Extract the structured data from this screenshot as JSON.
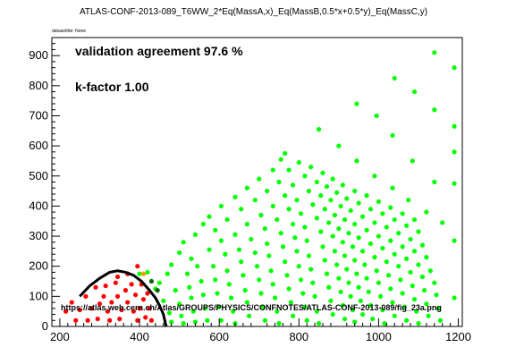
{
  "header": {
    "title": "ATLAS-CONF-2013-089_T6WW_2*Eq(MassA,x)_Eq(MassB,0.5*x+0.5*y)_Eq(MassC,y)",
    "dataset_info": "datasetIde: None"
  },
  "annotations": {
    "validation": "validation agreement 97.6 %",
    "kfactor": "k-factor 1.00",
    "url": "https://atlas.web.cern.ch/Atlas/GROUPS/PHYSICS/CONFNOTES/ATLAS-CONF-2013-089/fig_23a.png"
  },
  "colors": {
    "green": "#00ff00",
    "red": "#ff0000",
    "orange": "#ff9900",
    "darkgreen": "#006600",
    "contour": "#000000"
  },
  "chart_data": {
    "type": "scatter",
    "xlim": [
      180,
      1210
    ],
    "ylim": [
      0,
      960
    ],
    "xticks": [
      200,
      400,
      600,
      800,
      1000,
      1200
    ],
    "yticks": [
      0,
      100,
      200,
      300,
      400,
      500,
      600,
      700,
      800,
      900
    ],
    "grid": false,
    "legend": "none",
    "series": [
      {
        "color": "green",
        "points": [
          [
            400,
            175
          ],
          [
            420,
            180
          ],
          [
            440,
            125
          ],
          [
            460,
            85
          ],
          [
            475,
            45
          ],
          [
            480,
            15
          ],
          [
            450,
            145
          ],
          [
            470,
            175
          ],
          [
            490,
            120
          ],
          [
            500,
            75
          ],
          [
            505,
            35
          ],
          [
            510,
            10
          ],
          [
            480,
            205
          ],
          [
            500,
            245
          ],
          [
            520,
            175
          ],
          [
            525,
            130
          ],
          [
            530,
            95
          ],
          [
            535,
            50
          ],
          [
            540,
            15
          ],
          [
            510,
            280
          ],
          [
            530,
            225
          ],
          [
            545,
            200
          ],
          [
            555,
            150
          ],
          [
            560,
            105
          ],
          [
            565,
            60
          ],
          [
            570,
            20
          ],
          [
            540,
            305
          ],
          [
            560,
            340
          ],
          [
            575,
            255
          ],
          [
            585,
            200
          ],
          [
            590,
            155
          ],
          [
            595,
            110
          ],
          [
            600,
            65
          ],
          [
            605,
            20
          ],
          [
            575,
            365
          ],
          [
            590,
            320
          ],
          [
            605,
            285
          ],
          [
            615,
            240
          ],
          [
            620,
            185
          ],
          [
            625,
            140
          ],
          [
            630,
            95
          ],
          [
            635,
            50
          ],
          [
            640,
            10
          ],
          [
            605,
            400
          ],
          [
            620,
            355
          ],
          [
            640,
            305
          ],
          [
            650,
            255
          ],
          [
            655,
            215
          ],
          [
            660,
            170
          ],
          [
            665,
            120
          ],
          [
            670,
            80
          ],
          [
            675,
            35
          ],
          [
            640,
            430
          ],
          [
            655,
            390
          ],
          [
            670,
            340
          ],
          [
            680,
            290
          ],
          [
            690,
            245
          ],
          [
            695,
            200
          ],
          [
            700,
            155
          ],
          [
            705,
            110
          ],
          [
            710,
            65
          ],
          [
            715,
            20
          ],
          [
            670,
            460
          ],
          [
            690,
            420
          ],
          [
            705,
            370
          ],
          [
            715,
            325
          ],
          [
            720,
            275
          ],
          [
            725,
            235
          ],
          [
            730,
            185
          ],
          [
            735,
            140
          ],
          [
            740,
            95
          ],
          [
            745,
            50
          ],
          [
            750,
            10
          ],
          [
            700,
            490
          ],
          [
            720,
            450
          ],
          [
            735,
            400
          ],
          [
            745,
            355
          ],
          [
            755,
            310
          ],
          [
            760,
            265
          ],
          [
            765,
            215
          ],
          [
            770,
            170
          ],
          [
            775,
            125
          ],
          [
            780,
            80
          ],
          [
            785,
            35
          ],
          [
            735,
            520
          ],
          [
            750,
            480
          ],
          [
            765,
            435
          ],
          [
            775,
            390
          ],
          [
            785,
            340
          ],
          [
            790,
            295
          ],
          [
            795,
            250
          ],
          [
            800,
            200
          ],
          [
            805,
            155
          ],
          [
            810,
            110
          ],
          [
            815,
            65
          ],
          [
            820,
            20
          ],
          [
            755,
            555
          ],
          [
            765,
            575
          ],
          [
            775,
            520
          ],
          [
            785,
            470
          ],
          [
            795,
            420
          ],
          [
            805,
            375
          ],
          [
            815,
            330
          ],
          [
            820,
            285
          ],
          [
            825,
            235
          ],
          [
            830,
            190
          ],
          [
            835,
            145
          ],
          [
            840,
            100
          ],
          [
            845,
            50
          ],
          [
            850,
            10
          ],
          [
            800,
            545
          ],
          [
            815,
            500
          ],
          [
            825,
            450
          ],
          [
            835,
            405
          ],
          [
            845,
            360
          ],
          [
            855,
            315
          ],
          [
            860,
            265
          ],
          [
            865,
            220
          ],
          [
            870,
            175
          ],
          [
            875,
            130
          ],
          [
            880,
            85
          ],
          [
            885,
            40
          ],
          [
            830,
            530
          ],
          [
            845,
            480
          ],
          [
            855,
            435
          ],
          [
            865,
            390
          ],
          [
            875,
            345
          ],
          [
            885,
            300
          ],
          [
            890,
            250
          ],
          [
            895,
            205
          ],
          [
            900,
            160
          ],
          [
            905,
            115
          ],
          [
            910,
            70
          ],
          [
            915,
            25
          ],
          [
            860,
            510
          ],
          [
            870,
            465
          ],
          [
            880,
            420
          ],
          [
            890,
            370
          ],
          [
            900,
            325
          ],
          [
            910,
            280
          ],
          [
            915,
            235
          ],
          [
            920,
            190
          ],
          [
            925,
            145
          ],
          [
            930,
            100
          ],
          [
            935,
            55
          ],
          [
            940,
            15
          ],
          [
            885,
            490
          ],
          [
            895,
            445
          ],
          [
            905,
            400
          ],
          [
            915,
            355
          ],
          [
            925,
            310
          ],
          [
            935,
            265
          ],
          [
            940,
            220
          ],
          [
            945,
            175
          ],
          [
            950,
            130
          ],
          [
            955,
            85
          ],
          [
            960,
            40
          ],
          [
            910,
            470
          ],
          [
            920,
            425
          ],
          [
            930,
            385
          ],
          [
            940,
            340
          ],
          [
            950,
            295
          ],
          [
            960,
            250
          ],
          [
            965,
            205
          ],
          [
            970,
            160
          ],
          [
            975,
            115
          ],
          [
            980,
            70
          ],
          [
            985,
            25
          ],
          [
            940,
            450
          ],
          [
            950,
            410
          ],
          [
            960,
            365
          ],
          [
            970,
            320
          ],
          [
            980,
            275
          ],
          [
            990,
            230
          ],
          [
            995,
            185
          ],
          [
            1000,
            145
          ],
          [
            1005,
            100
          ],
          [
            1010,
            55
          ],
          [
            1015,
            10
          ],
          [
            970,
            435
          ],
          [
            980,
            390
          ],
          [
            990,
            345
          ],
          [
            1000,
            300
          ],
          [
            1010,
            260
          ],
          [
            1020,
            215
          ],
          [
            1025,
            170
          ],
          [
            1030,
            125
          ],
          [
            1035,
            80
          ],
          [
            1040,
            35
          ],
          [
            1000,
            415
          ],
          [
            1010,
            375
          ],
          [
            1020,
            330
          ],
          [
            1030,
            285
          ],
          [
            1040,
            240
          ],
          [
            1050,
            200
          ],
          [
            1055,
            155
          ],
          [
            1060,
            110
          ],
          [
            1065,
            65
          ],
          [
            1070,
            20
          ],
          [
            1030,
            395
          ],
          [
            1040,
            355
          ],
          [
            1050,
            310
          ],
          [
            1060,
            265
          ],
          [
            1070,
            225
          ],
          [
            1080,
            180
          ],
          [
            1085,
            135
          ],
          [
            1090,
            90
          ],
          [
            1095,
            50
          ],
          [
            1100,
            10
          ],
          [
            1060,
            375
          ],
          [
            1070,
            335
          ],
          [
            1080,
            290
          ],
          [
            1090,
            250
          ],
          [
            1100,
            205
          ],
          [
            1110,
            165
          ],
          [
            1115,
            120
          ],
          [
            1120,
            75
          ],
          [
            1125,
            35
          ],
          [
            1090,
            355
          ],
          [
            1100,
            315
          ],
          [
            1110,
            270
          ],
          [
            1120,
            230
          ],
          [
            1130,
            185
          ],
          [
            1140,
            145
          ],
          [
            1145,
            105
          ],
          [
            1150,
            60
          ],
          [
            1155,
            20
          ],
          [
            850,
            655
          ],
          [
            900,
            600
          ],
          [
            945,
            550
          ],
          [
            990,
            500
          ],
          [
            1035,
            460
          ],
          [
            1075,
            420
          ],
          [
            1120,
            380
          ],
          [
            1160,
            345
          ],
          [
            945,
            740
          ],
          [
            995,
            700
          ],
          [
            1035,
            635
          ],
          [
            1085,
            550
          ],
          [
            1140,
            480
          ],
          [
            1190,
            475
          ],
          [
            1040,
            825
          ],
          [
            1090,
            780
          ],
          [
            1140,
            720
          ],
          [
            1190,
            665
          ],
          [
            1190,
            580
          ],
          [
            1140,
            910
          ],
          [
            1190,
            860
          ],
          [
            1190,
            285
          ],
          [
            1190,
            95
          ]
        ]
      },
      {
        "color": "red",
        "points": [
          [
            215,
            50
          ],
          [
            230,
            80
          ],
          [
            240,
            20
          ],
          [
            250,
            55
          ],
          [
            265,
            100
          ],
          [
            270,
            20
          ],
          [
            280,
            60
          ],
          [
            290,
            130
          ],
          [
            295,
            25
          ],
          [
            300,
            75
          ],
          [
            310,
            100
          ],
          [
            315,
            135
          ],
          [
            320,
            50
          ],
          [
            325,
            20
          ],
          [
            330,
            80
          ],
          [
            340,
            145
          ],
          [
            345,
            100
          ],
          [
            350,
            25
          ],
          [
            355,
            55
          ],
          [
            365,
            120
          ],
          [
            370,
            80
          ],
          [
            380,
            140
          ],
          [
            385,
            50
          ],
          [
            390,
            105
          ],
          [
            395,
            20
          ],
          [
            400,
            60
          ],
          [
            395,
            200
          ],
          [
            405,
            140
          ],
          [
            410,
            90
          ],
          [
            415,
            30
          ],
          [
            420,
            110
          ],
          [
            425,
            60
          ],
          [
            430,
            20
          ],
          [
            345,
            165
          ],
          [
            370,
            175
          ]
        ]
      },
      {
        "color": "orange",
        "points": [
          [
            410,
            175
          ]
        ]
      },
      {
        "color": "darkgreen",
        "points": [
          [
            430,
            150
          ],
          [
            445,
            120
          ]
        ]
      }
    ],
    "contour": [
      [
        250,
        100
      ],
      [
        275,
        135
      ],
      [
        300,
        160
      ],
      [
        325,
        180
      ],
      [
        345,
        185
      ],
      [
        365,
        180
      ],
      [
        385,
        170
      ],
      [
        405,
        150
      ],
      [
        425,
        120
      ],
      [
        440,
        95
      ],
      [
        450,
        70
      ],
      [
        460,
        40
      ],
      [
        465,
        10
      ],
      [
        467,
        0
      ]
    ]
  }
}
